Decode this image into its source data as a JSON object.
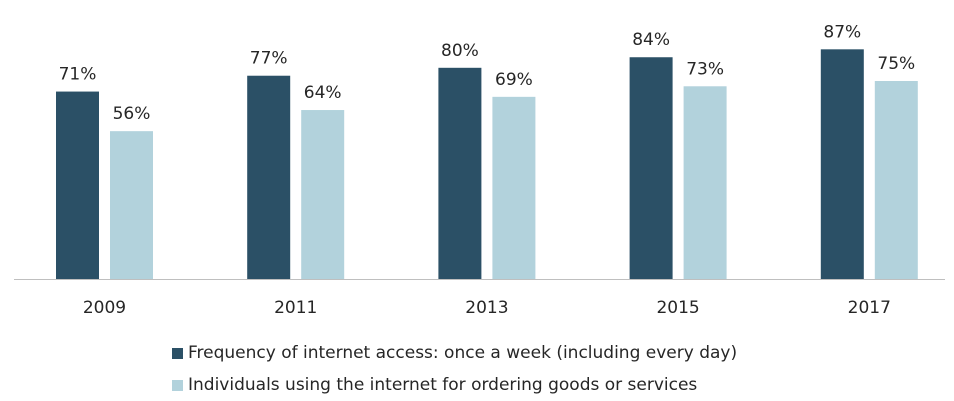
{
  "chart_data": {
    "type": "bar",
    "title": "",
    "xlabel": "",
    "ylabel": "",
    "categories": [
      "2009",
      "2011",
      "2013",
      "2015",
      "2017"
    ],
    "series": [
      {
        "name": "Frequency of internet access: once a week (including every day)",
        "values": [
          71,
          77,
          80,
          84,
          87
        ],
        "labels": [
          "71%",
          "77%",
          "80%",
          "84%",
          "87%"
        ],
        "color": "#2b5066"
      },
      {
        "name": "Individuals using the internet for ordering goods or services",
        "values": [
          56,
          64,
          69,
          73,
          75
        ],
        "labels": [
          "56%",
          "64%",
          "69%",
          "73%",
          "75%"
        ],
        "color": "#b2d2dc"
      }
    ],
    "ylim": [
      0,
      100
    ],
    "grid": false,
    "legend_position": "bottom",
    "value_format": "percent"
  }
}
